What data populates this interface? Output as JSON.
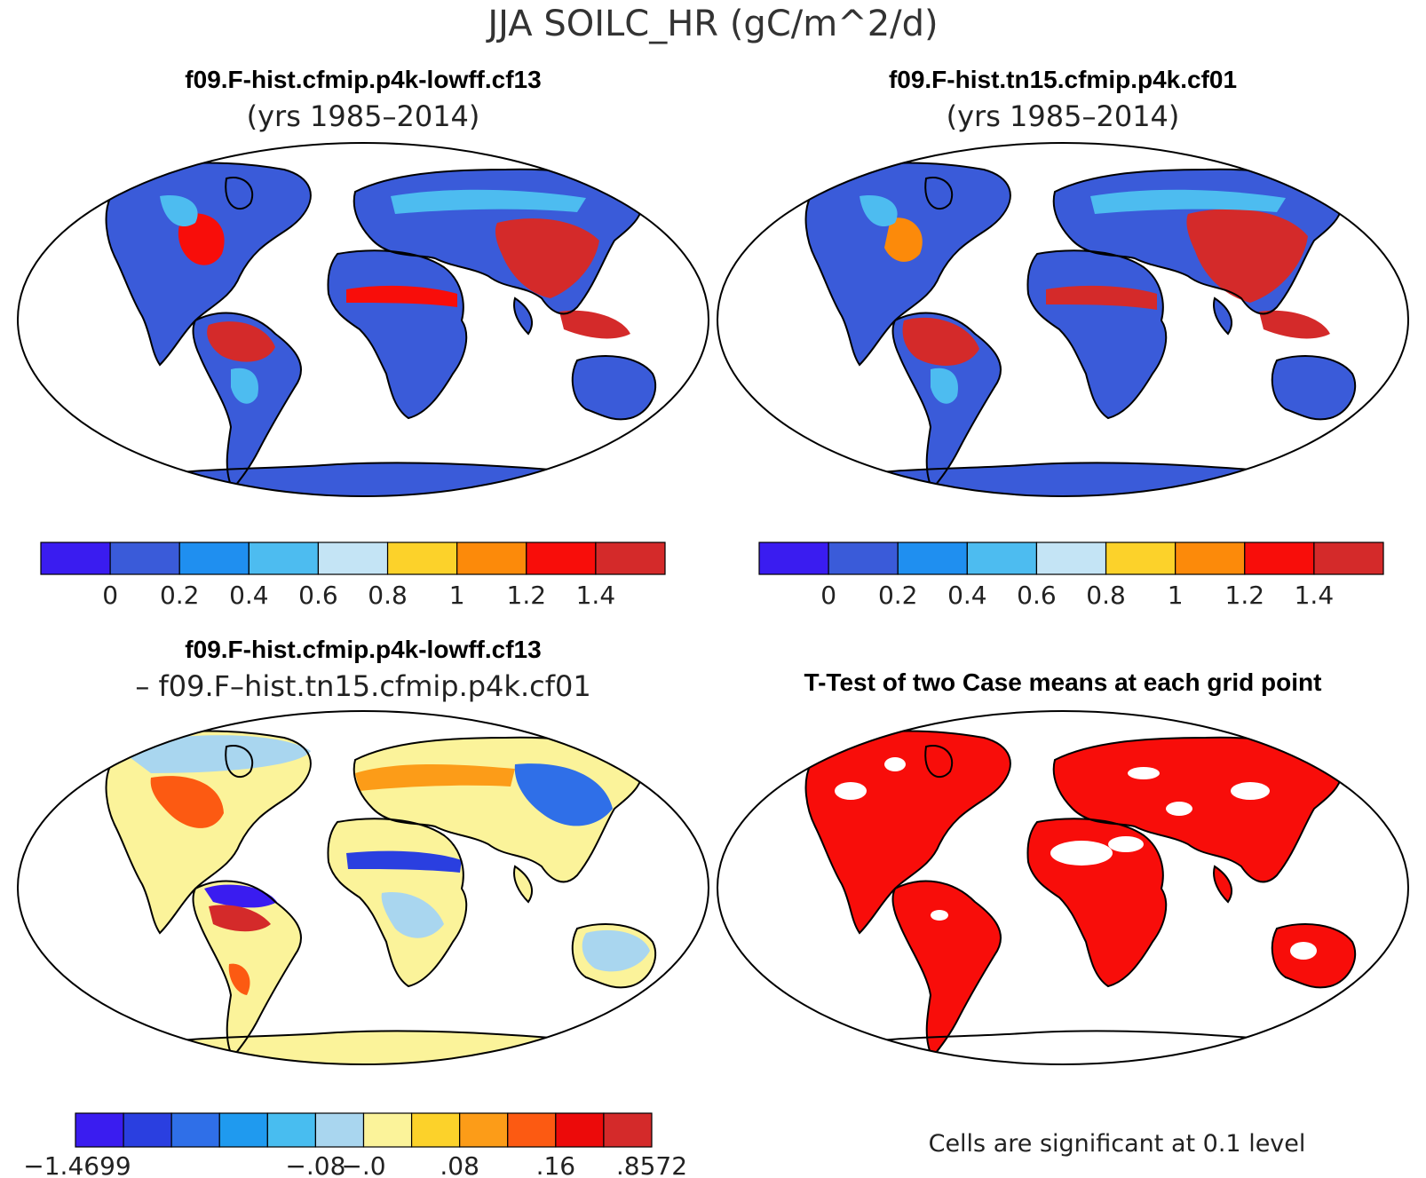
{
  "page_title": "JJA SOILC_HR (gC/m^2/d)",
  "panels": {
    "top_left": {
      "title": "f09.F-hist.cfmip.p4k-lowff.cf13",
      "subtitle": "(yrs 1985–2014)"
    },
    "top_right": {
      "title": "f09.F-hist.tn15.cfmip.p4k.cf01",
      "subtitle": "(yrs 1985–2014)"
    },
    "bottom_left": {
      "title": "f09.F-hist.cfmip.p4k-lowff.cf13",
      "subtitle": "– f09.F–hist.tn15.cfmip.p4k.cf01"
    },
    "bottom_right": {
      "title": "T-Test of two Case means at each grid point",
      "footnote": "Cells are significant at 0.1 level"
    }
  },
  "colorbars": {
    "absolute": {
      "colors": [
        "#3a1cf0",
        "#3a5bd9",
        "#1f8ff0",
        "#4dbcf0",
        "#c4e4f5",
        "#fcd22a",
        "#fc8a0a",
        "#f80d0a",
        "#d42a2a"
      ],
      "labels": [
        "0",
        "0.2",
        "0.4",
        "0.6",
        "0.8",
        "1",
        "1.2",
        "1.4"
      ]
    },
    "difference": {
      "colors": [
        "#3a1cf0",
        "#2a3fe0",
        "#2f6fe8",
        "#1f9aef",
        "#48bdf0",
        "#a9d6ef",
        "#fbf39a",
        "#fcd22a",
        "#fc9c18",
        "#fc5a12",
        "#ec0a0a",
        "#d42a2a"
      ],
      "labels": [
        "−1.4699",
        "",
        "−.08",
        "−.0",
        ".08",
        ".16",
        ".8572"
      ]
    }
  },
  "colors": {
    "coastline": "#000000",
    "significance": "#f80d0a",
    "background": "#ffffff"
  }
}
